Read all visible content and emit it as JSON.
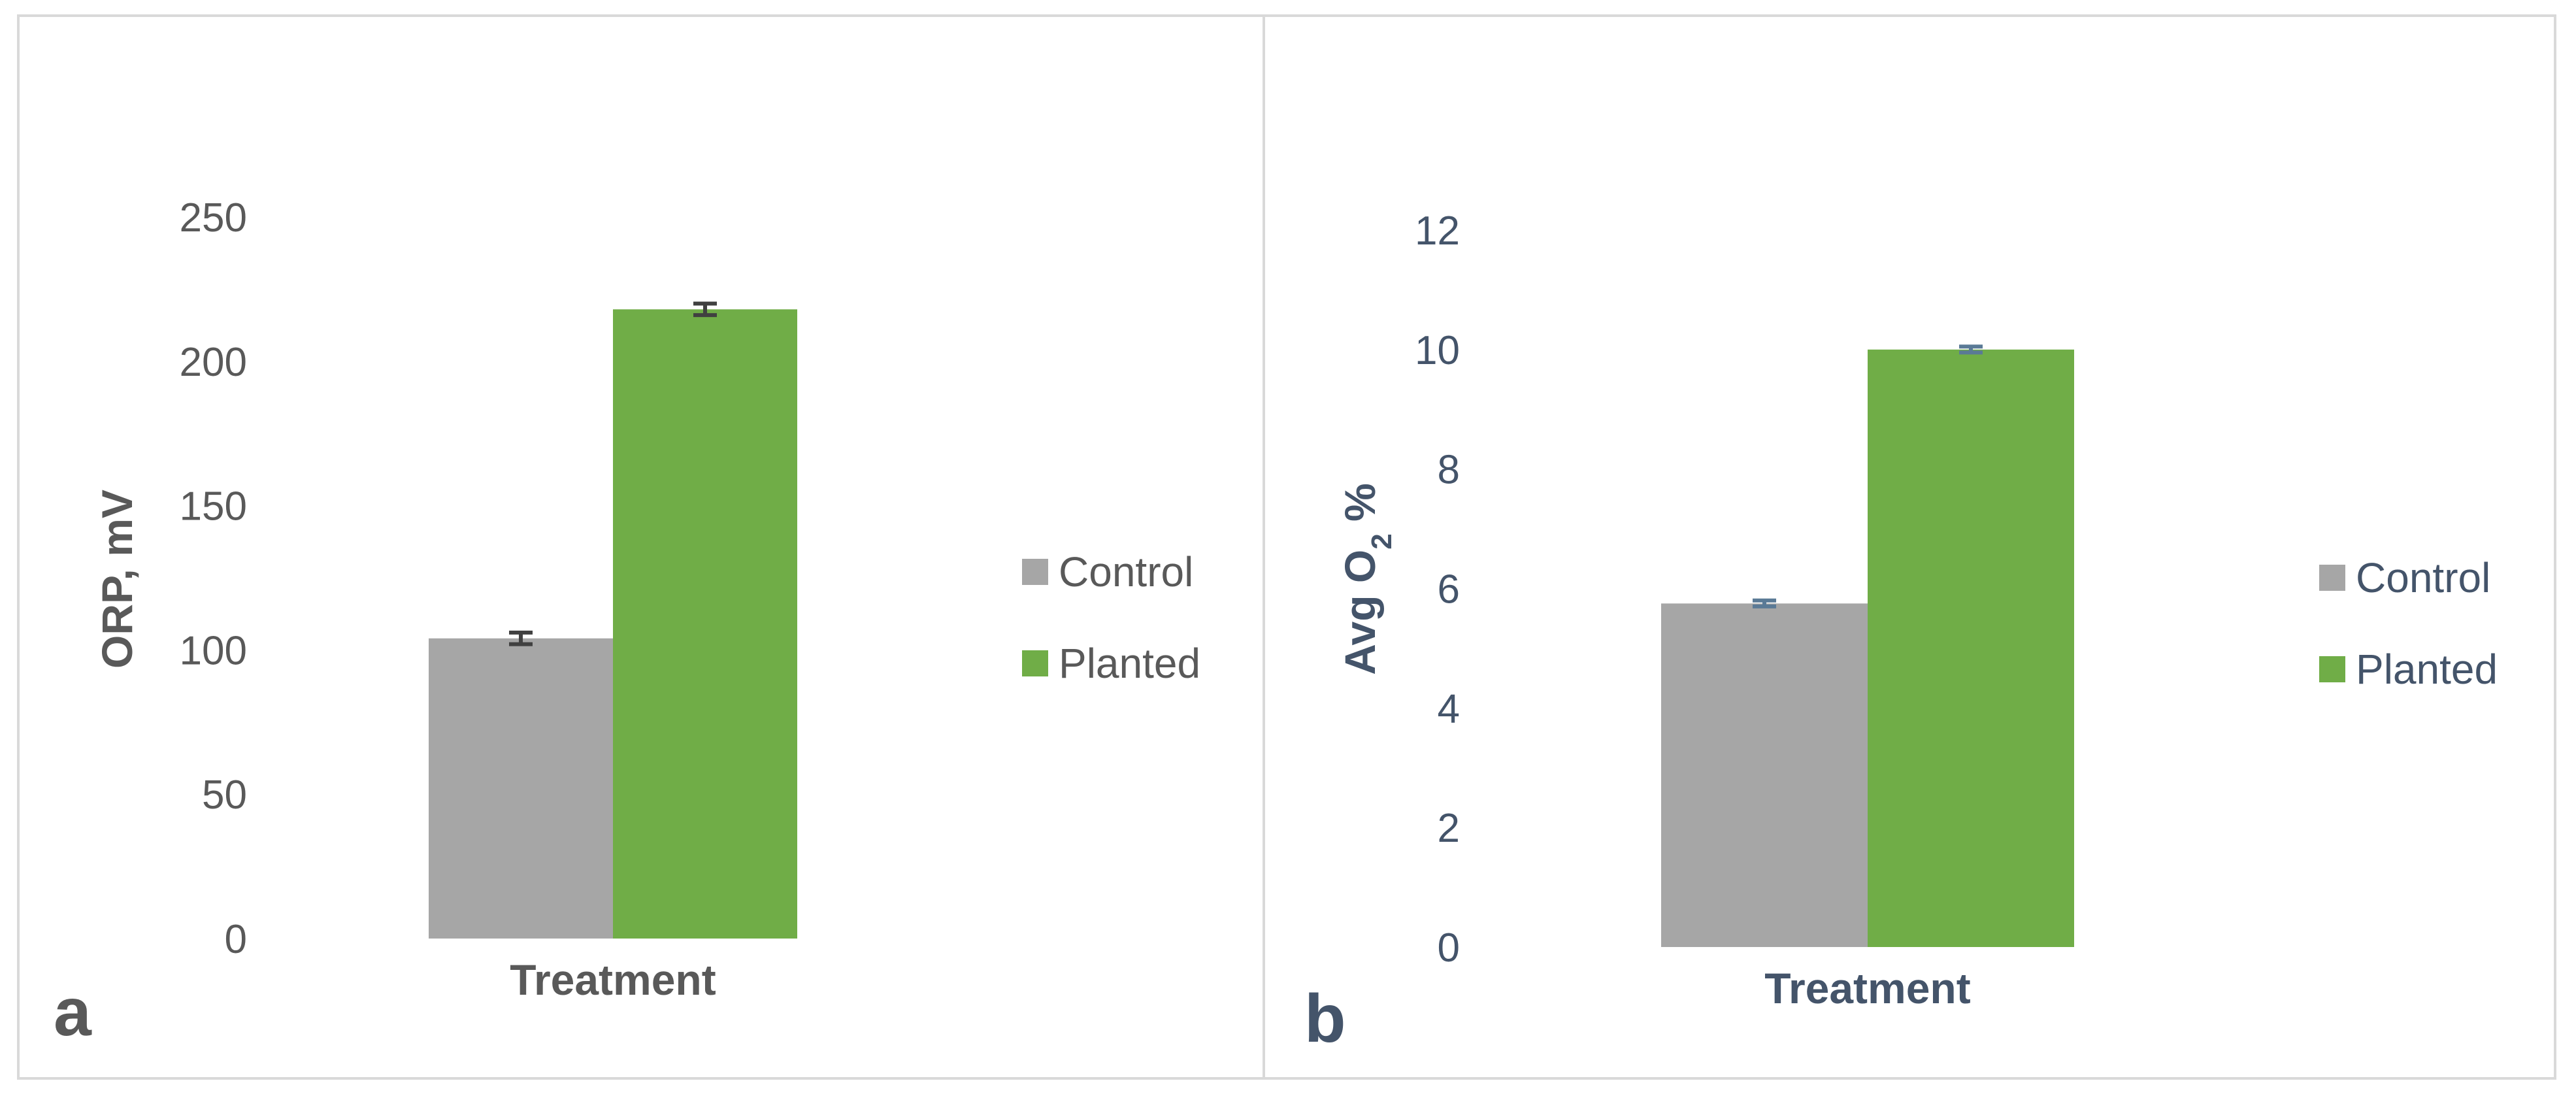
{
  "chart_data": [
    {
      "type": "bar",
      "panel_label": "a",
      "categories": [
        "Treatment"
      ],
      "series": [
        {
          "name": "Control",
          "values": [
            104
          ],
          "error": [
            2
          ],
          "color": "#a6a6a6"
        },
        {
          "name": "Planted",
          "values": [
            218
          ],
          "error": [
            2
          ],
          "color": "#70ad47"
        }
      ],
      "xlabel": "Treatment",
      "ylabel": "ORP, mV",
      "ylim": [
        0,
        250
      ],
      "yticks": [
        "0",
        "50",
        "100",
        "150",
        "200",
        "250"
      ],
      "grid": false,
      "legend_position": "right",
      "text_color": "#595959",
      "error_bar_color": "#404040"
    },
    {
      "type": "bar",
      "panel_label": "b",
      "categories": [
        "Treatment"
      ],
      "series": [
        {
          "name": "Control",
          "values": [
            5.75
          ],
          "error": [
            0.05
          ],
          "color": "#a6a6a6"
        },
        {
          "name": "Planted",
          "values": [
            10.0
          ],
          "error": [
            0.05
          ],
          "color": "#70ad47"
        }
      ],
      "xlabel": "Treatment",
      "ylabel": "Avg O2 %",
      "ylabel_parts": {
        "main": "Avg O",
        "subscript": "2",
        "suffix": " %"
      },
      "ylim": [
        0,
        12
      ],
      "yticks": [
        "0",
        "2",
        "4",
        "6",
        "8",
        "10",
        "12"
      ],
      "grid": false,
      "legend_position": "right",
      "text_color": "#44546a",
      "error_bar_color": "#5a7a96"
    }
  ]
}
